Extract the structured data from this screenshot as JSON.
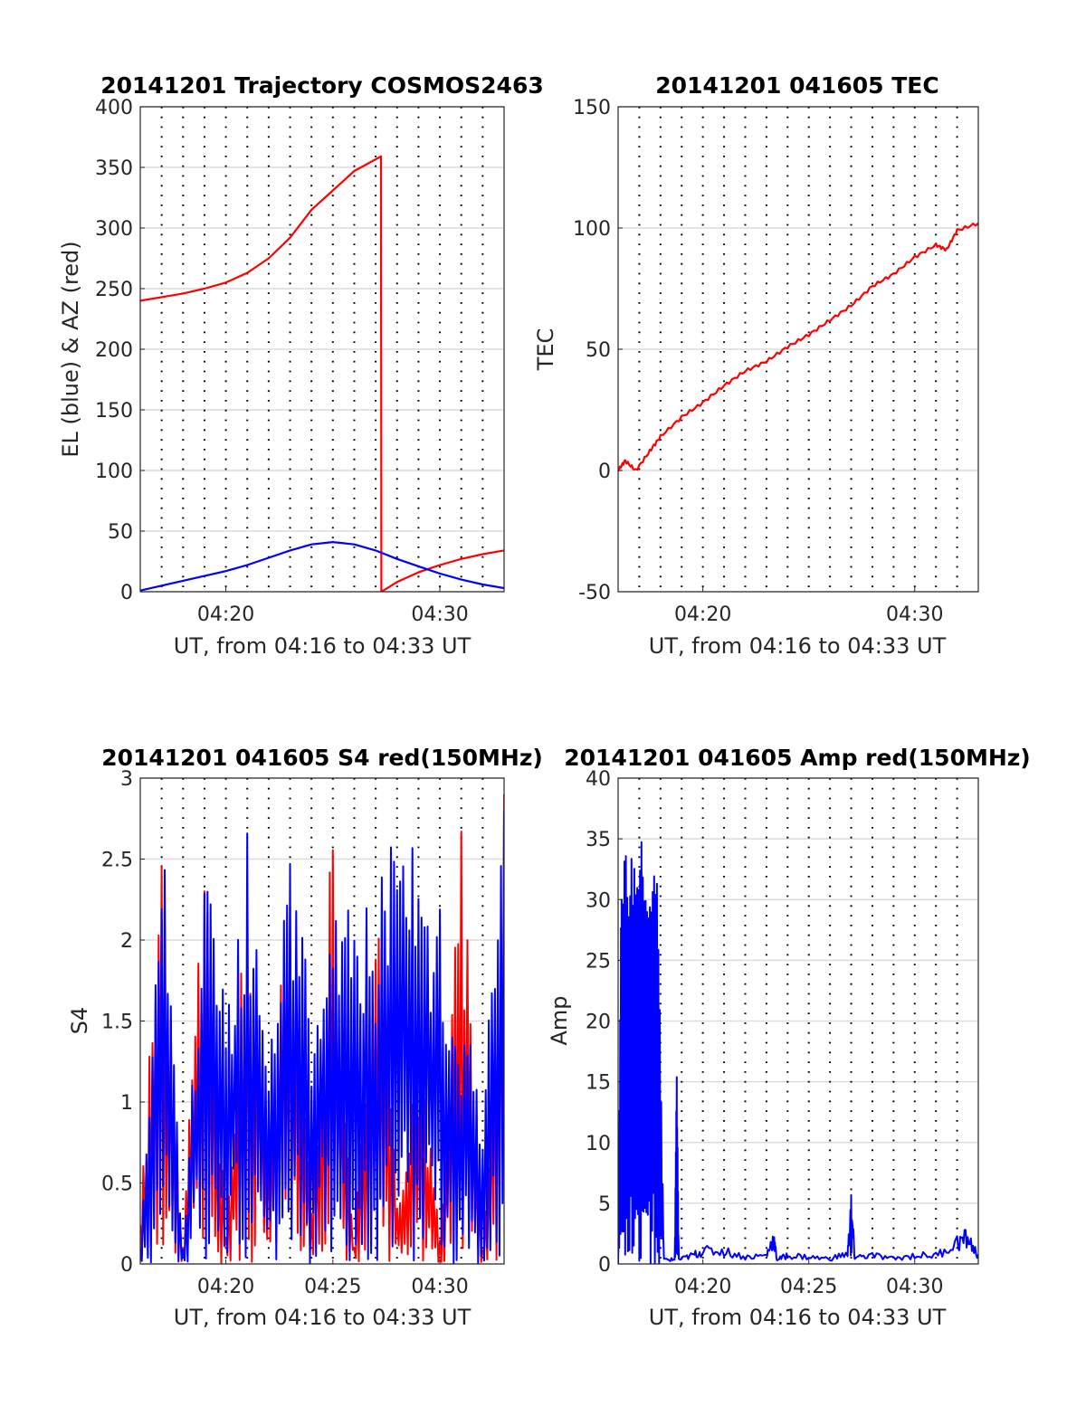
{
  "colors": {
    "el_line": "#0000ff",
    "az_line": "#ff0000",
    "tec_line": "#ff0000",
    "s4_red": "#ff0000",
    "s4_blue": "#0000ff",
    "amp_line": "#0000ff",
    "grid": "#dcdcdc",
    "axes": "#262626"
  },
  "chart_data": [
    {
      "type": "line",
      "title": "20141201 Trajectory COSMOS2463",
      "xlabel": "UT, from 04:16 to 04:33 UT",
      "ylabel": "EL (blue) & AZ (red)",
      "xlim": [
        "04:16",
        "04:33"
      ],
      "ylim": [
        0,
        400
      ],
      "x_ticks": [
        "04:20",
        "04:30"
      ],
      "y_ticks": [
        "0",
        "50",
        "100",
        "150",
        "200",
        "250",
        "300",
        "350",
        "400"
      ],
      "grid": true,
      "series": [
        {
          "color": "#ff0000",
          "x": [
            "04:16:00",
            "04:17:00",
            "04:18:00",
            "04:19:00",
            "04:20:00",
            "04:21:00",
            "04:22:00",
            "04:23:00",
            "04:24:00",
            "04:25:00",
            "04:26:00",
            "04:27:15",
            "04:27:16",
            "04:28:00",
            "04:29:00",
            "04:30:00",
            "04:31:00",
            "04:32:00",
            "04:33:00"
          ],
          "values": [
            240,
            243,
            246,
            250,
            255,
            263,
            275,
            292,
            315,
            331,
            347,
            359,
            0,
            8,
            16,
            22,
            27,
            31,
            34
          ]
        },
        {
          "color": "#0000ff",
          "x": [
            "04:16:00",
            "04:17:00",
            "04:18:00",
            "04:19:00",
            "04:20:00",
            "04:21:00",
            "04:22:00",
            "04:23:00",
            "04:24:00",
            "04:25:00",
            "04:26:00",
            "04:27:00",
            "04:28:00",
            "04:29:00",
            "04:30:00",
            "04:31:00",
            "04:32:00",
            "04:33:00"
          ],
          "values": [
            1,
            5,
            9,
            13,
            17,
            22,
            28,
            34,
            39,
            41,
            39,
            34,
            27,
            21,
            15,
            10,
            6,
            3
          ]
        }
      ]
    },
    {
      "type": "line",
      "title": "20141201 041605 TEC",
      "xlabel": "UT, from 04:16 to 04:33 UT",
      "ylabel": "TEC",
      "xlim": [
        "04:16",
        "04:33"
      ],
      "ylim": [
        -50,
        150
      ],
      "x_ticks": [
        "04:20",
        "04:30"
      ],
      "y_ticks": [
        "-50",
        "0",
        "50",
        "100",
        "150"
      ],
      "grid": true,
      "series": [
        {
          "color": "#ff0000",
          "x": [
            "04:16:00",
            "04:16:20",
            "04:16:50",
            "04:17:30",
            "04:18:00",
            "04:19:00",
            "04:20:00",
            "04:21:00",
            "04:22:00",
            "04:23:00",
            "04:24:00",
            "04:25:00",
            "04:26:00",
            "04:27:00",
            "04:28:00",
            "04:29:00",
            "04:30:00",
            "04:31:00",
            "04:31:30",
            "04:32:00",
            "04:33:00"
          ],
          "values": [
            0,
            4,
            0,
            8,
            14,
            22,
            28,
            35,
            41,
            45,
            51,
            56,
            62,
            68,
            76,
            81,
            88,
            93,
            91,
            99,
            102
          ]
        }
      ]
    },
    {
      "type": "line",
      "title": "20141201 041605 S4 red(150MHz)",
      "xlabel": "UT, from 04:16 to 04:33 UT",
      "ylabel": "S4",
      "xlim": [
        "04:16",
        "04:33"
      ],
      "ylim": [
        0,
        3
      ],
      "x_ticks": [
        "04:20",
        "04:25",
        "04:30"
      ],
      "y_ticks": [
        "0",
        "0.5",
        "1",
        "1.5",
        "2",
        "2.5",
        "3"
      ],
      "grid": true,
      "series": [
        {
          "color": "#ff0000",
          "x": [
            "04:16",
            "04:17",
            "04:18",
            "04:19",
            "04:20",
            "04:21",
            "04:22",
            "04:23",
            "04:24",
            "04:25",
            "04:26",
            "04:27",
            "04:28",
            "04:29",
            "04:30",
            "04:31",
            "04:32",
            "04:33"
          ],
          "values": [
            0.3,
            2.8,
            0.1,
            2.9,
            0.2,
            2.6,
            0.9,
            2.4,
            0.5,
            2.9,
            0.1,
            2.7,
            0.4,
            1.5,
            0.2,
            2.8,
            0.1,
            2.9
          ]
        },
        {
          "color": "#0000ff",
          "x": [
            "04:16",
            "04:17",
            "04:18",
            "04:19",
            "04:20",
            "04:21",
            "04:22",
            "04:23",
            "04:24",
            "04:25",
            "04:26",
            "04:27",
            "04:28",
            "04:29",
            "04:30",
            "04:31",
            "04:32",
            "04:33"
          ],
          "values": [
            0.1,
            2.9,
            0.1,
            2.8,
            1.8,
            2.7,
            1.3,
            2.5,
            1.8,
            2.9,
            2.4,
            2.2,
            2.9,
            2.8,
            2.4,
            1.6,
            1.1,
            2.8
          ]
        }
      ]
    },
    {
      "type": "line",
      "title": "20141201 041605 Amp red(150MHz)",
      "xlabel": "UT, from 04:16 to 04:33 UT",
      "ylabel": "Amp",
      "xlim": [
        "04:16",
        "04:33"
      ],
      "ylim": [
        0,
        40
      ],
      "x_ticks": [
        "04:20",
        "04:25",
        "04:30"
      ],
      "y_ticks": [
        "0",
        "5",
        "10",
        "15",
        "20",
        "25",
        "30",
        "35",
        "40"
      ],
      "grid": true,
      "series": [
        {
          "color": "#0000ff",
          "x": [
            "04:16:00",
            "04:16:10",
            "04:16:30",
            "04:16:50",
            "04:17:10",
            "04:17:30",
            "04:17:50",
            "04:18:10",
            "04:18:40",
            "04:18:46",
            "04:18:52",
            "04:19:30",
            "04:20:00",
            "04:21:00",
            "04:22:00",
            "04:23:00",
            "04:23:20",
            "04:23:30",
            "04:24:00",
            "04:25:00",
            "04:26:00",
            "04:26:50",
            "04:27:00",
            "04:27:10",
            "04:28:00",
            "04:29:00",
            "04:30:00",
            "04:31:00",
            "04:32:00",
            "04:32:30",
            "04:33:00"
          ],
          "values": [
            0,
            35,
            33,
            34,
            35,
            30,
            35,
            0.5,
            0.5,
            16,
            0.5,
            1,
            1.5,
            1.5,
            0.8,
            1,
            3,
            0.5,
            1,
            0.8,
            0.6,
            1.2,
            6,
            0.8,
            1,
            0.6,
            1,
            1,
            2.5,
            3,
            0.8
          ]
        }
      ]
    }
  ]
}
